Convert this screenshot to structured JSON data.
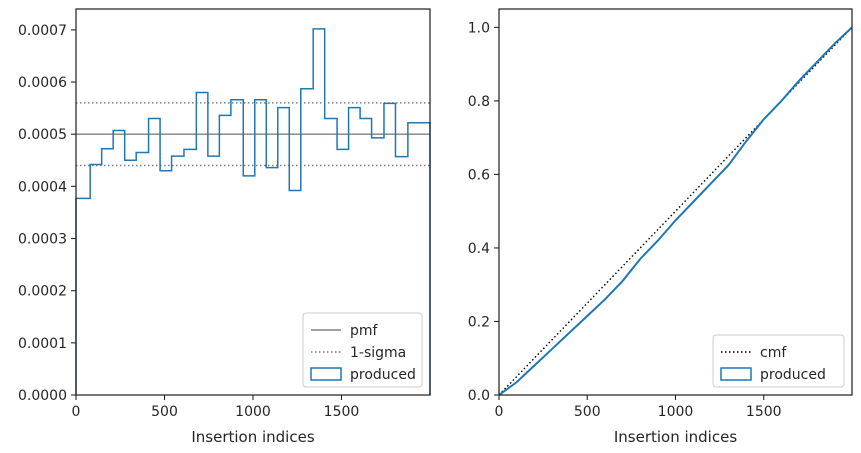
{
  "chart_data": [
    {
      "type": "histogram-step",
      "xlabel": "Insertion indices",
      "ylabel": "",
      "xlim": [
        0,
        2000
      ],
      "ylim": [
        0,
        0.00074
      ],
      "xticks": [
        0,
        500,
        1000,
        1500
      ],
      "xtick_labels": [
        "0",
        "500",
        "1000",
        "1500"
      ],
      "yticks": [
        0,
        0.0001,
        0.0002,
        0.0003,
        0.0004,
        0.0005,
        0.0006,
        0.0007
      ],
      "ytick_labels": [
        "0.0000",
        "0.0001",
        "0.0002",
        "0.0003",
        "0.0004",
        "0.0005",
        "0.0006",
        "0.0007"
      ],
      "grid": false,
      "legend_position": "lower-right",
      "legend": [
        {
          "label": "pmf",
          "style": "solid-line",
          "color": "#808080"
        },
        {
          "label": "1-sigma",
          "style": "dotted-line",
          "color": "#808080"
        },
        {
          "label": "produced",
          "style": "step-box",
          "color": "#1f77b4"
        }
      ],
      "pmf": 0.0005,
      "sigma_band": [
        0.00044,
        0.00056
      ],
      "series": [
        {
          "name": "produced",
          "bin_edges": [
            0,
            80,
            145,
            210,
            275,
            340,
            410,
            475,
            540,
            610,
            680,
            745,
            810,
            875,
            945,
            1010,
            1075,
            1140,
            1205,
            1270,
            1340,
            1405,
            1475,
            1540,
            1605,
            1670,
            1740,
            1805,
            1875,
            1940,
            2000
          ],
          "values": [
            0.000377,
            0.000442,
            0.000472,
            0.000507,
            0.00045,
            0.000465,
            0.00053,
            0.00043,
            0.000458,
            0.000471,
            0.00058,
            0.000458,
            0.000536,
            0.000566,
            0.00042,
            0.000566,
            0.000436,
            0.000551,
            0.000392,
            0.000587,
            0.000702,
            0.00053,
            0.000471,
            0.000551,
            0.00053,
            0.000493,
            0.000559,
            0.000457,
            0.000522,
            0.000522
          ]
        }
      ]
    },
    {
      "type": "line",
      "xlabel": "Insertion indices",
      "ylabel": "",
      "xlim": [
        0,
        2000
      ],
      "ylim": [
        0,
        1.05
      ],
      "xticks": [
        0,
        500,
        1000,
        1500
      ],
      "xtick_labels": [
        "0",
        "500",
        "1000",
        "1500"
      ],
      "yticks": [
        0.0,
        0.2,
        0.4,
        0.6,
        0.8,
        1.0
      ],
      "ytick_labels": [
        "0.0",
        "0.2",
        "0.4",
        "0.6",
        "0.8",
        "1.0"
      ],
      "grid": false,
      "legend_position": "lower-right",
      "legend": [
        {
          "label": "cmf",
          "style": "dotted-line",
          "color": "#000000"
        },
        {
          "label": "produced",
          "style": "step-box",
          "color": "#1f77b4"
        }
      ],
      "series": [
        {
          "name": "cmf",
          "x": [
            0,
            2000
          ],
          "y": [
            0,
            1.0
          ]
        },
        {
          "name": "produced",
          "x": [
            0,
            100,
            200,
            300,
            400,
            500,
            600,
            700,
            800,
            900,
            1000,
            1100,
            1200,
            1300,
            1400,
            1500,
            1600,
            1700,
            1800,
            1900,
            2000
          ],
          "y": [
            0,
            0.035,
            0.08,
            0.125,
            0.17,
            0.215,
            0.26,
            0.31,
            0.37,
            0.42,
            0.475,
            0.525,
            0.575,
            0.625,
            0.69,
            0.75,
            0.8,
            0.855,
            0.905,
            0.955,
            1.0
          ]
        }
      ]
    }
  ]
}
